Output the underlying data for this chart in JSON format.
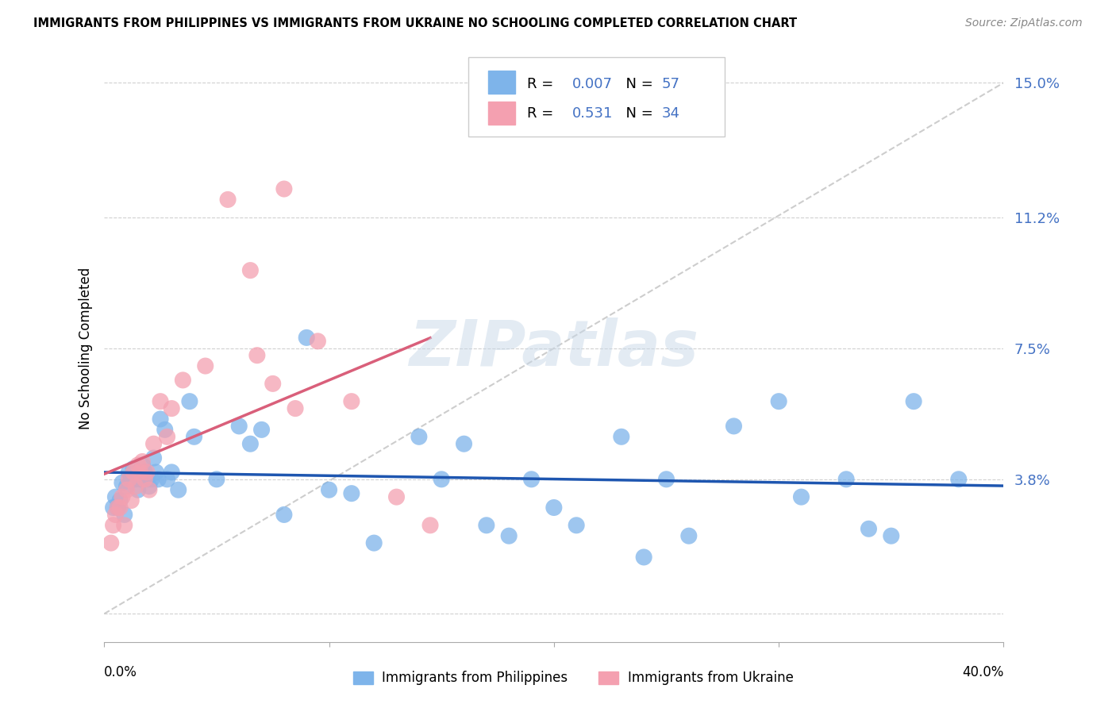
{
  "title": "IMMIGRANTS FROM PHILIPPINES VS IMMIGRANTS FROM UKRAINE NO SCHOOLING COMPLETED CORRELATION CHART",
  "source": "Source: ZipAtlas.com",
  "ylabel": "No Schooling Completed",
  "xlim": [
    0.0,
    0.4
  ],
  "ylim": [
    -0.008,
    0.158
  ],
  "r_blue": 0.007,
  "n_blue": 57,
  "r_pink": 0.531,
  "n_pink": 34,
  "color_blue": "#7eb4ea",
  "color_pink": "#f4a0b0",
  "line_blue": "#1e56b0",
  "line_pink": "#d95f7a",
  "line_diag_color": "#c8c8c8",
  "text_blue": "#4472C4",
  "watermark": "ZIPatlas",
  "ytick_vals": [
    0.0,
    0.038,
    0.075,
    0.112,
    0.15
  ],
  "ytick_labels": [
    "",
    "3.8%",
    "7.5%",
    "11.2%",
    "15.0%"
  ],
  "xtick_vals": [
    0.0,
    0.1,
    0.2,
    0.3,
    0.4
  ],
  "philippines_x": [
    0.004,
    0.005,
    0.006,
    0.007,
    0.008,
    0.009,
    0.01,
    0.011,
    0.012,
    0.013,
    0.014,
    0.015,
    0.016,
    0.017,
    0.018,
    0.019,
    0.02,
    0.021,
    0.022,
    0.023,
    0.024,
    0.025,
    0.027,
    0.028,
    0.03,
    0.033,
    0.038,
    0.04,
    0.05,
    0.06,
    0.065,
    0.07,
    0.08,
    0.09,
    0.1,
    0.11,
    0.12,
    0.14,
    0.15,
    0.16,
    0.17,
    0.18,
    0.19,
    0.2,
    0.21,
    0.23,
    0.24,
    0.25,
    0.26,
    0.28,
    0.3,
    0.31,
    0.33,
    0.34,
    0.35,
    0.36,
    0.38
  ],
  "philippines_y": [
    0.03,
    0.033,
    0.03,
    0.032,
    0.037,
    0.028,
    0.036,
    0.04,
    0.038,
    0.041,
    0.038,
    0.035,
    0.038,
    0.042,
    0.04,
    0.038,
    0.036,
    0.038,
    0.044,
    0.04,
    0.038,
    0.055,
    0.052,
    0.038,
    0.04,
    0.035,
    0.06,
    0.05,
    0.038,
    0.053,
    0.048,
    0.052,
    0.028,
    0.078,
    0.035,
    0.034,
    0.02,
    0.05,
    0.038,
    0.048,
    0.025,
    0.022,
    0.038,
    0.03,
    0.025,
    0.05,
    0.016,
    0.038,
    0.022,
    0.053,
    0.06,
    0.033,
    0.038,
    0.024,
    0.022,
    0.06,
    0.038
  ],
  "ukraine_x": [
    0.003,
    0.004,
    0.005,
    0.006,
    0.007,
    0.008,
    0.009,
    0.01,
    0.011,
    0.012,
    0.013,
    0.014,
    0.015,
    0.016,
    0.017,
    0.018,
    0.019,
    0.02,
    0.022,
    0.025,
    0.028,
    0.03,
    0.035,
    0.045,
    0.055,
    0.065,
    0.068,
    0.075,
    0.08,
    0.085,
    0.095,
    0.11,
    0.13,
    0.145
  ],
  "ukraine_y": [
    0.02,
    0.025,
    0.028,
    0.03,
    0.03,
    0.033,
    0.025,
    0.035,
    0.038,
    0.032,
    0.04,
    0.036,
    0.042,
    0.04,
    0.043,
    0.038,
    0.04,
    0.035,
    0.048,
    0.06,
    0.05,
    0.058,
    0.066,
    0.07,
    0.117,
    0.097,
    0.073,
    0.065,
    0.12,
    0.058,
    0.077,
    0.06,
    0.033,
    0.025
  ]
}
